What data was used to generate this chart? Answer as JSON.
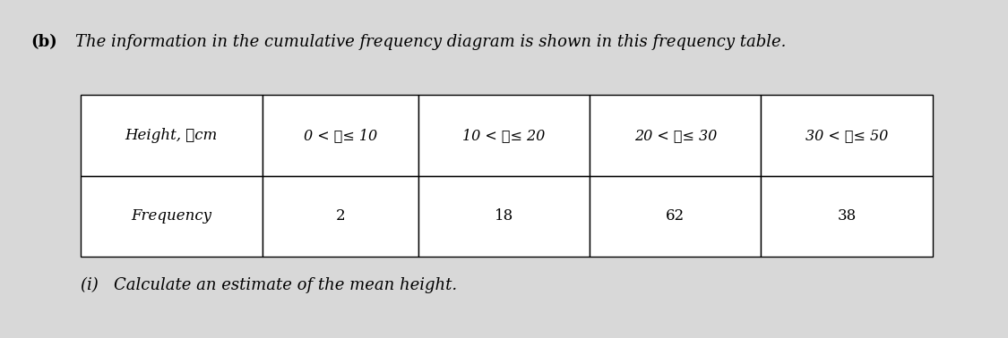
{
  "background_color": "#d8d8d8",
  "part_label": "(b)",
  "intro_text": "The information in the cumulative frequency diagram is shown in this frequency table.",
  "table": {
    "col0_label": "Height, ℊcm",
    "columns": [
      "0 < ℊ≤ 10",
      "10 < ℊ≤ 20",
      "20 < ℊ≤ 30",
      "30 < ℊ≤ 50"
    ],
    "row_label": "Frequency",
    "frequencies": [
      "2",
      "18",
      "62",
      "38"
    ]
  },
  "sub_question": "(i)   Calculate an estimate of the mean height.",
  "font_size_intro": 13,
  "font_size_table": 12,
  "font_size_sub": 13
}
